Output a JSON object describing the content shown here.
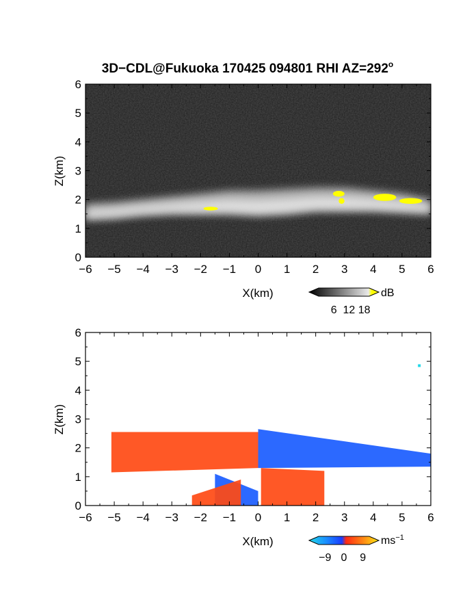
{
  "title": {
    "main": "3D−CDL@Fukuoka 170425 094801 RHI AZ=292",
    "degree_symbol": "o"
  },
  "colors": {
    "background": "#ffffff",
    "gray_panel_bg": "#262626",
    "echo_highlight": "#ffff00",
    "velocity_positive": "#ff4a14",
    "velocity_negative": "#1a5cff",
    "velocity_near_zero": "#22d8e8"
  },
  "chart_data": [
    {
      "type": "heatmap",
      "panel": "backscatter",
      "title": "3D−CDL@Fukuoka 170425 094801 RHI AZ=292°",
      "xlabel": "X(km)",
      "ylabel": "Z(km)",
      "xlim": [
        -6,
        6
      ],
      "ylim": [
        0,
        6
      ],
      "xticks": [
        "−6",
        "−5",
        "−4",
        "−3",
        "−2",
        "−1",
        "0",
        "1",
        "2",
        "3",
        "4",
        "5",
        "6"
      ],
      "yticks": [
        "0",
        "1",
        "2",
        "3",
        "4",
        "5",
        "6"
      ],
      "colorbar": {
        "unit": "dB",
        "ticks": [
          "6",
          "12",
          "18"
        ],
        "range": [
          0,
          20
        ],
        "colormap": "grayscale with yellow above 18 dB"
      },
      "layer": {
        "description_values": "bright aerosol layer, top km and bottom km vs x",
        "x": [
          -6,
          -5,
          -4,
          -3,
          -2,
          -1,
          0,
          1,
          2,
          3,
          4,
          5,
          6
        ],
        "top": [
          1.85,
          1.9,
          2.0,
          2.1,
          2.2,
          2.3,
          2.3,
          2.35,
          2.4,
          2.4,
          2.3,
          2.2,
          2.0
        ],
        "bottom": [
          1.3,
          1.35,
          1.45,
          1.5,
          1.5,
          1.5,
          1.45,
          1.5,
          1.6,
          1.6,
          1.6,
          1.55,
          1.5
        ]
      },
      "highlights_above_18dB": [
        {
          "x": [
            -1.9,
            -1.4
          ],
          "z": [
            1.62,
            1.75
          ]
        },
        {
          "x": [
            2.6,
            3.0
          ],
          "z": [
            2.1,
            2.3
          ]
        },
        {
          "x": [
            2.8,
            3.0
          ],
          "z": [
            1.85,
            2.05
          ]
        },
        {
          "x": [
            4.0,
            4.8
          ],
          "z": [
            1.95,
            2.2
          ]
        },
        {
          "x": [
            4.9,
            5.7
          ],
          "z": [
            1.85,
            2.05
          ]
        }
      ],
      "grid": false
    },
    {
      "type": "heatmap",
      "panel": "doppler_velocity",
      "xlabel": "X(km)",
      "ylabel": "Z(km)",
      "xlim": [
        -6,
        6
      ],
      "ylim": [
        0,
        6
      ],
      "xticks": [
        "−6",
        "−5",
        "−4",
        "−3",
        "−2",
        "−1",
        "0",
        "1",
        "2",
        "3",
        "4",
        "5",
        "6"
      ],
      "yticks": [
        "0",
        "1",
        "2",
        "3",
        "4",
        "5",
        "6"
      ],
      "colorbar": {
        "unit": "ms",
        "unit_exponent": "−1",
        "ticks": [
          "−9",
          "0",
          "9"
        ],
        "range": [
          -12,
          12
        ],
        "colormap": "cyan-blue negative, red-orange-yellow positive"
      },
      "regions": [
        {
          "sign": "positive",
          "x": [
            -5.1,
            0.0
          ],
          "z_bottom": [
            1.15,
            1.3
          ],
          "z_top": [
            2.55,
            2.55
          ]
        },
        {
          "sign": "negative",
          "x": [
            0.0,
            6.0
          ],
          "z_bottom": [
            1.3,
            1.35
          ],
          "z_top": [
            2.65,
            1.8
          ]
        },
        {
          "sign": "negative",
          "x": [
            -1.5,
            0.0
          ],
          "z_bottom": [
            0.0,
            0.0
          ],
          "z_top": [
            1.1,
            0.5
          ]
        },
        {
          "sign": "positive",
          "x": [
            -2.3,
            -0.6
          ],
          "z_bottom": [
            0.0,
            0.0
          ],
          "z_top": [
            0.35,
            0.9
          ]
        },
        {
          "sign": "positive",
          "x": [
            0.1,
            2.3
          ],
          "z_bottom": [
            0.0,
            0.0
          ],
          "z_top": [
            1.3,
            1.2
          ]
        }
      ],
      "isolated_points": [
        {
          "x": 5.6,
          "z": 4.85,
          "sign": "near_zero"
        }
      ],
      "grid": false
    }
  ]
}
